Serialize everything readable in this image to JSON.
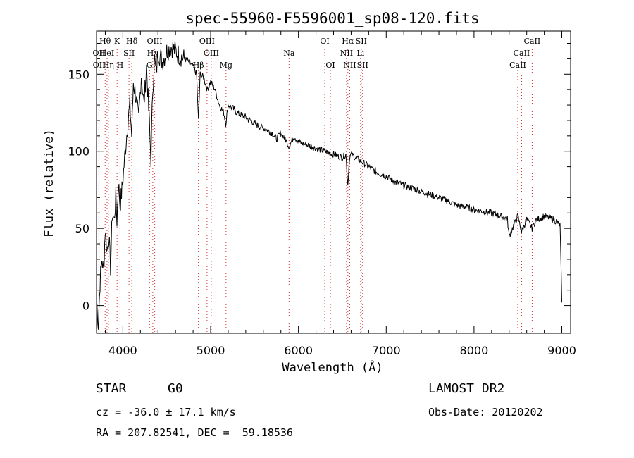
{
  "chart_data": {
    "type": "line",
    "title": "spec-55960-F5596001_sp08-120.fits",
    "xlabel": "Wavelength (Å)",
    "ylabel": "Flux (relative)",
    "xlim": [
      3700,
      9100
    ],
    "ylim": [
      -18,
      178
    ],
    "xticks": [
      4000,
      5000,
      6000,
      7000,
      8000,
      9000
    ],
    "yticks": [
      0,
      50,
      100,
      150
    ],
    "grid": false,
    "series": [
      {
        "color": "#000000",
        "x": [
          3700,
          3720,
          3740,
          3760,
          3780,
          3800,
          3820,
          3840,
          3860,
          3880,
          3900,
          3920,
          3933,
          3950,
          3968,
          3990,
          4020,
          4050,
          4080,
          4101,
          4120,
          4150,
          4180,
          4210,
          4240,
          4270,
          4300,
          4320,
          4340,
          4360,
          4380,
          4400,
          4450,
          4500,
          4550,
          4600,
          4650,
          4700,
          4750,
          4800,
          4840,
          4861,
          4880,
          4920,
          4960,
          5000,
          5050,
          5100,
          5150,
          5172,
          5200,
          5250,
          5300,
          5400,
          5500,
          5600,
          5700,
          5750,
          5800,
          5850,
          5893,
          5950,
          6000,
          6100,
          6200,
          6300,
          6400,
          6500,
          6540,
          6563,
          6580,
          6600,
          6700,
          6800,
          6900,
          7000,
          7100,
          7200,
          7300,
          7400,
          7500,
          7600,
          7700,
          7800,
          7900,
          8000,
          8100,
          8200,
          8300,
          8380,
          8400,
          8498,
          8542,
          8600,
          8662,
          8700,
          8800,
          8900,
          8950,
          8980,
          9000
        ],
        "y": [
          5,
          -12,
          15,
          30,
          22,
          50,
          35,
          45,
          25,
          60,
          55,
          70,
          55,
          80,
          65,
          75,
          95,
          115,
          130,
          110,
          145,
          135,
          120,
          150,
          130,
          155,
          120,
          95,
          140,
          160,
          150,
          165,
          158,
          165,
          168,
          165,
          162,
          160,
          158,
          155,
          150,
          120,
          150,
          148,
          140,
          145,
          140,
          130,
          125,
          118,
          130,
          128,
          125,
          122,
          118,
          115,
          112,
          108,
          112,
          108,
          103,
          110,
          106,
          104,
          102,
          100,
          98,
          96,
          98,
          78,
          95,
          98,
          94,
          90,
          86,
          84,
          80,
          78,
          76,
          74,
          72,
          70,
          68,
          65,
          64,
          62,
          61,
          60,
          58,
          56,
          45,
          58,
          48,
          56,
          50,
          55,
          58,
          56,
          54,
          52,
          2
        ]
      }
    ],
    "line_labels": [
      {
        "text": "Hθ",
        "x": 3798,
        "row": 1
      },
      {
        "text": "K",
        "x": 3934,
        "row": 1
      },
      {
        "text": "Hδ",
        "x": 4102,
        "row": 1
      },
      {
        "text": "OIII",
        "x": 4363,
        "row": 1
      },
      {
        "text": "OIII",
        "x": 4959,
        "row": 1
      },
      {
        "text": "OI",
        "x": 6300,
        "row": 1
      },
      {
        "text": "Hα",
        "x": 6563,
        "row": 1
      },
      {
        "text": "SII",
        "x": 6716,
        "row": 1
      },
      {
        "text": "CaII",
        "x": 8662,
        "row": 1
      },
      {
        "text": "OII",
        "x": 3727,
        "row": 2
      },
      {
        "text": "HeI",
        "x": 3820,
        "row": 2
      },
      {
        "text": "SII",
        "x": 4070,
        "row": 2
      },
      {
        "text": "Hγ",
        "x": 4341,
        "row": 2
      },
      {
        "text": "OIII",
        "x": 5007,
        "row": 2
      },
      {
        "text": "Na",
        "x": 5893,
        "row": 2
      },
      {
        "text": "NII",
        "x": 6548,
        "row": 2
      },
      {
        "text": "Li",
        "x": 6708,
        "row": 2
      },
      {
        "text": "CaII",
        "x": 8542,
        "row": 2
      },
      {
        "text": "OII",
        "x": 3729,
        "row": 3
      },
      {
        "text": "Hη",
        "x": 3835,
        "row": 3
      },
      {
        "text": "H",
        "x": 3968,
        "row": 3
      },
      {
        "text": "G",
        "x": 4304,
        "row": 3
      },
      {
        "text": "Hβ",
        "x": 4861,
        "row": 3
      },
      {
        "text": "Mg",
        "x": 5175,
        "row": 3
      },
      {
        "text": "OI",
        "x": 6364,
        "row": 3
      },
      {
        "text": "NII",
        "x": 6584,
        "row": 3
      },
      {
        "text": "SII",
        "x": 6731,
        "row": 3
      },
      {
        "text": "CaII",
        "x": 8498,
        "row": 3
      }
    ]
  },
  "info": {
    "class": "STAR",
    "subclass": "G0",
    "survey": "LAMOST DR2",
    "cz": "cz = -36.0 ± 17.1 km/s",
    "obs_date": "Obs-Date: 20120202",
    "coords": "RA = 207.82541, DEC =  59.18536"
  },
  "colors": {
    "line_marker": "#cc3333",
    "spectrum": "#000000"
  }
}
